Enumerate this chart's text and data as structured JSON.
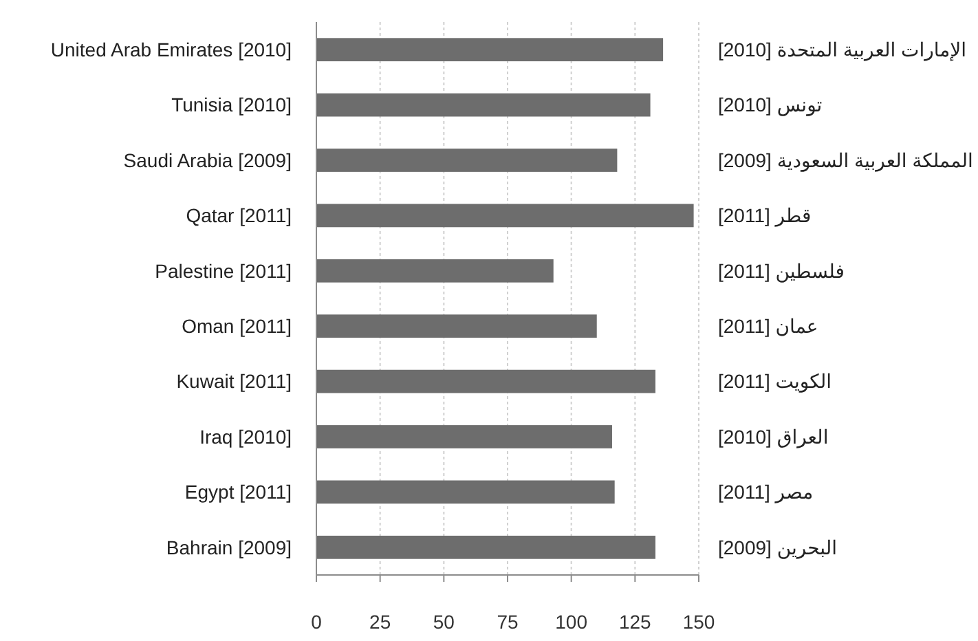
{
  "chart_data": {
    "type": "bar",
    "orientation": "horizontal",
    "categories": [
      "United Arab Emirates [2010]",
      "Tunisia [2010]",
      "Saudi Arabia [2009]",
      "Qatar [2011]",
      "Palestine [2011]",
      "Oman [2011]",
      "Kuwait [2011]",
      "Iraq [2010]",
      "Egypt [2011]",
      "Bahrain [2009]"
    ],
    "y2_categories": [
      "الإمارات العربية المتحدة [2010]",
      "تونس [2010]",
      "المملكة العربية السعودية [2009]",
      "قطر [2011]",
      "فلسطين [2011]",
      "عمان [2011]",
      "الكويت [2011]",
      "العراق [2010]",
      "مصر [2011]",
      "البحرين [2009]"
    ],
    "values": [
      136,
      131,
      118,
      148,
      93,
      110,
      133,
      116,
      117,
      133
    ],
    "color": "#6d6d6d",
    "xlim": [
      0,
      150
    ],
    "xticks": [
      0,
      25,
      50,
      75,
      100,
      125,
      150
    ],
    "grid": "x"
  }
}
